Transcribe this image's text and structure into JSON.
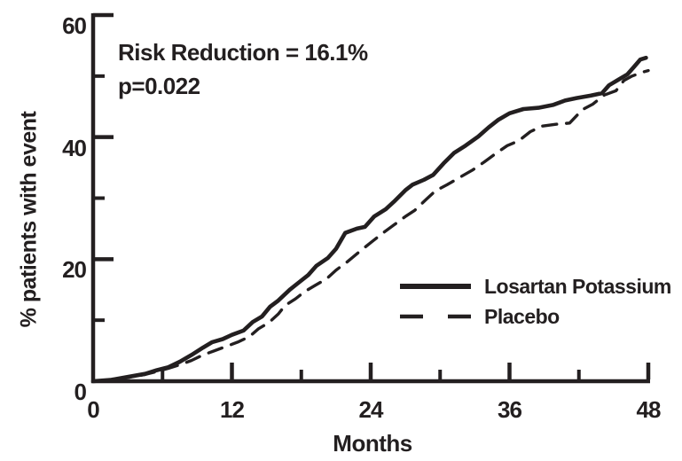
{
  "chart_data": {
    "type": "line",
    "xlabel": "Months",
    "ylabel": "% patients with event",
    "xlim": [
      0,
      48
    ],
    "ylim": [
      0,
      60
    ],
    "x_major_ticks": [
      0,
      12,
      24,
      36,
      48
    ],
    "x_minor_ticks": [
      6,
      18,
      30,
      42
    ],
    "y_major_ticks": [
      0,
      20,
      40,
      60
    ],
    "y_minor_ticks": [
      10,
      30,
      50
    ],
    "grid": false,
    "legend_position": "inside-lower-right",
    "ink_color": "#231f20",
    "annotation": {
      "line1": "Risk Reduction = 16.1%",
      "line2": "p=0.022"
    },
    "series": [
      {
        "name": "Losartan Potassium",
        "style": "solid",
        "points": [
          [
            0,
            0
          ],
          [
            1.5,
            0.2
          ],
          [
            3,
            0.7
          ],
          [
            4.5,
            1.2
          ],
          [
            5.5,
            1.8
          ],
          [
            6.5,
            2.3
          ],
          [
            7.5,
            3.2
          ],
          [
            8.5,
            4.3
          ],
          [
            9.5,
            5.5
          ],
          [
            10.3,
            6.4
          ],
          [
            11.2,
            6.9
          ],
          [
            12,
            7.6
          ],
          [
            13,
            8.3
          ],
          [
            13.8,
            9.7
          ],
          [
            14.6,
            10.6
          ],
          [
            15.3,
            12.2
          ],
          [
            16,
            13.2
          ],
          [
            17,
            15
          ],
          [
            17.8,
            16.2
          ],
          [
            18.6,
            17.4
          ],
          [
            19.3,
            18.9
          ],
          [
            20.3,
            20.2
          ],
          [
            21,
            21.7
          ],
          [
            21.8,
            24.3
          ],
          [
            22.8,
            25
          ],
          [
            23.5,
            25.3
          ],
          [
            24.3,
            27
          ],
          [
            25.3,
            28.2
          ],
          [
            26,
            29.4
          ],
          [
            27,
            31.3
          ],
          [
            27.6,
            32.2
          ],
          [
            28.6,
            33
          ],
          [
            29.4,
            33.8
          ],
          [
            30.3,
            35.7
          ],
          [
            31.2,
            37.4
          ],
          [
            32.2,
            38.6
          ],
          [
            33.3,
            40.1
          ],
          [
            34.2,
            41.6
          ],
          [
            35,
            42.8
          ],
          [
            36,
            43.9
          ],
          [
            37.2,
            44.6
          ],
          [
            38.5,
            44.8
          ],
          [
            39.8,
            45.3
          ],
          [
            40.8,
            46
          ],
          [
            41.8,
            46.4
          ],
          [
            43,
            46.8
          ],
          [
            44,
            47.2
          ],
          [
            44.6,
            48.5
          ],
          [
            45.4,
            49.4
          ],
          [
            46.2,
            50.3
          ],
          [
            46.8,
            51.6
          ],
          [
            47.3,
            52.7
          ],
          [
            47.8,
            53
          ]
        ]
      },
      {
        "name": "Placebo",
        "style": "dashed",
        "points": [
          [
            0,
            0
          ],
          [
            1.5,
            0.2
          ],
          [
            3,
            0.6
          ],
          [
            4.5,
            1.1
          ],
          [
            5.5,
            1.6
          ],
          [
            6.5,
            2.1
          ],
          [
            7.5,
            2.7
          ],
          [
            8.5,
            3.4
          ],
          [
            9.5,
            4.3
          ],
          [
            10.5,
            5
          ],
          [
            11.5,
            5.7
          ],
          [
            12.5,
            6.4
          ],
          [
            13.5,
            7.3
          ],
          [
            14.3,
            8.6
          ],
          [
            15.2,
            9.6
          ],
          [
            16,
            11
          ],
          [
            16.6,
            12.4
          ],
          [
            17.5,
            13.5
          ],
          [
            18.3,
            14.7
          ],
          [
            19.2,
            15.7
          ],
          [
            20.2,
            16.8
          ],
          [
            21,
            18.2
          ],
          [
            22,
            19.6
          ],
          [
            23,
            21.2
          ],
          [
            24,
            22.7
          ],
          [
            25,
            24.2
          ],
          [
            26,
            25.6
          ],
          [
            27,
            27
          ],
          [
            27.8,
            28
          ],
          [
            28.8,
            29.8
          ],
          [
            29.6,
            31.2
          ],
          [
            30.6,
            32.2
          ],
          [
            31.6,
            33.3
          ],
          [
            32.8,
            34.6
          ],
          [
            33.8,
            35.9
          ],
          [
            34.8,
            37.3
          ],
          [
            35.8,
            38.6
          ],
          [
            36.8,
            39.4
          ],
          [
            37.8,
            40.9
          ],
          [
            38.8,
            41.8
          ],
          [
            40,
            42.1
          ],
          [
            41.2,
            42.3
          ],
          [
            42.3,
            44.5
          ],
          [
            43.2,
            45.4
          ],
          [
            44.2,
            46.9
          ],
          [
            45.2,
            47.6
          ],
          [
            45.9,
            49.3
          ],
          [
            46.6,
            50
          ],
          [
            47.6,
            50.7
          ],
          [
            48,
            50.9
          ]
        ]
      }
    ]
  }
}
